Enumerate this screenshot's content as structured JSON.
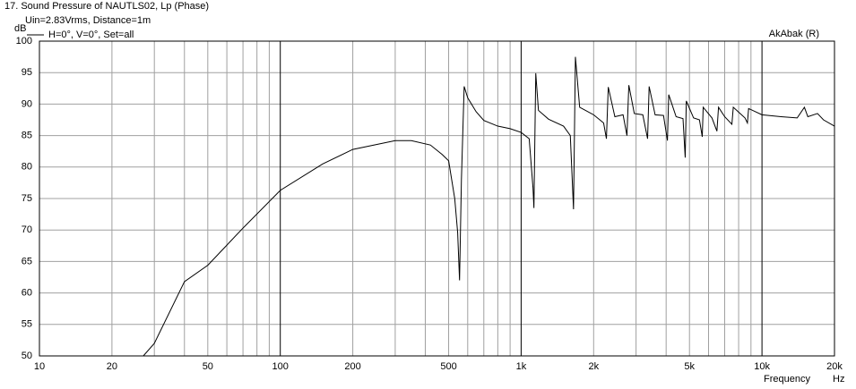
{
  "chart_data": {
    "type": "line",
    "title": "17. Sound Pressure of NAUTLS02, Lp (Phase)",
    "subtitle": "Uin=2.83Vrms, Distance=1m",
    "annotation": "AkAbak (R)",
    "ylabel": "dB",
    "xlabel": "Frequency",
    "xunit": "Hz",
    "xscale": "log",
    "grid": true,
    "legend": "top-left",
    "xlim": [
      10,
      20000
    ],
    "ylim": [
      50,
      100
    ],
    "xticks": [
      10,
      20,
      50,
      100,
      200,
      500,
      {
        "value": 1000,
        "label": "1k"
      },
      {
        "value": 2000,
        "label": "2k"
      },
      {
        "value": 5000,
        "label": "5k"
      },
      {
        "value": 10000,
        "label": "10k"
      },
      {
        "value": 20000,
        "label": "20k"
      }
    ],
    "xminorticks": [
      30,
      40,
      60,
      70,
      80,
      90,
      300,
      400,
      600,
      700,
      800,
      900,
      3000,
      4000,
      6000,
      7000,
      8000,
      9000
    ],
    "yticks": [
      50,
      55,
      60,
      65,
      70,
      75,
      80,
      85,
      90,
      95,
      100
    ],
    "x": [
      10,
      27,
      30,
      40,
      50,
      70,
      100,
      150,
      200,
      300,
      350,
      420,
      470,
      500,
      530,
      545,
      555,
      565,
      580,
      600,
      650,
      700,
      800,
      900,
      1000,
      1080,
      1120,
      1130,
      1150,
      1180,
      1300,
      1500,
      1600,
      1650,
      1680,
      1750,
      2000,
      2200,
      2260,
      2300,
      2450,
      2650,
      2750,
      2800,
      2950,
      3200,
      3350,
      3400,
      3600,
      3900,
      4050,
      4100,
      4400,
      4700,
      4800,
      4850,
      5200,
      5500,
      5650,
      5700,
      6200,
      6500,
      6600,
      7000,
      7500,
      7600,
      8500,
      8700,
      8800,
      10000,
      12000,
      14000,
      15000,
      15500,
      17000,
      18000,
      20000
    ],
    "series": [
      {
        "name": "H=0°, V=0°, Set=all",
        "color": "#000000",
        "values": [
          50,
          50,
          52,
          61.8,
          64.4,
          70.3,
          76.3,
          80.5,
          82.8,
          84.2,
          84.2,
          83.5,
          82,
          81,
          75,
          69.6,
          62,
          78,
          92.8,
          91,
          88.8,
          87.4,
          86.5,
          86.1,
          85.5,
          84.5,
          76.7,
          73.5,
          94.9,
          89,
          87.6,
          86.5,
          85,
          73.3,
          97.5,
          89.5,
          88.3,
          87,
          84.5,
          92.7,
          88,
          88.3,
          85,
          93,
          88.5,
          88.3,
          84.5,
          92.8,
          88.3,
          88.2,
          84.2,
          91.5,
          88,
          87.7,
          81.5,
          90.5,
          87.8,
          87.5,
          84.8,
          89.5,
          87.8,
          85.7,
          89.5,
          88,
          86.8,
          89.5,
          87.8,
          87,
          89.3,
          88.3,
          88,
          87.8,
          89.5,
          88,
          88.5,
          87.5,
          86.5
        ]
      }
    ]
  }
}
